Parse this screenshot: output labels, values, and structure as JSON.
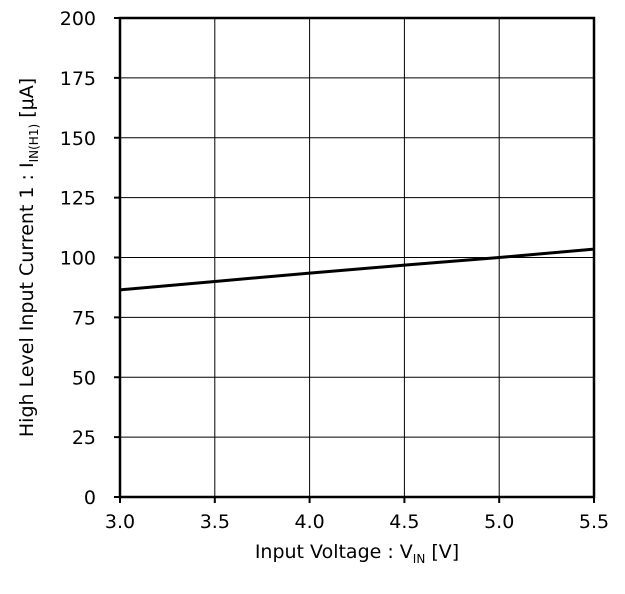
{
  "chart_data": {
    "type": "line",
    "title": "",
    "xlabel": {
      "main": "Input Voltage : V",
      "sub": "IN",
      "unit": " [V]"
    },
    "ylabel": {
      "main": "High Level Input Current 1 : I",
      "sub": "IN(H1)",
      "unit": " [μA]"
    },
    "xlim": [
      3.0,
      5.5
    ],
    "ylim": [
      0,
      200
    ],
    "x_ticks": [
      "3.0",
      "3.5",
      "4.0",
      "4.5",
      "5.0",
      "5.5"
    ],
    "y_ticks": [
      "0",
      "25",
      "50",
      "75",
      "100",
      "125",
      "150",
      "175",
      "200"
    ],
    "grid": true,
    "series": [
      {
        "color": "#000000",
        "x": [
          3.0,
          3.5,
          4.0,
          4.5,
          5.0,
          5.5
        ],
        "y": [
          86.5,
          90.0,
          93.5,
          96.8,
          100.0,
          103.5
        ]
      }
    ]
  }
}
